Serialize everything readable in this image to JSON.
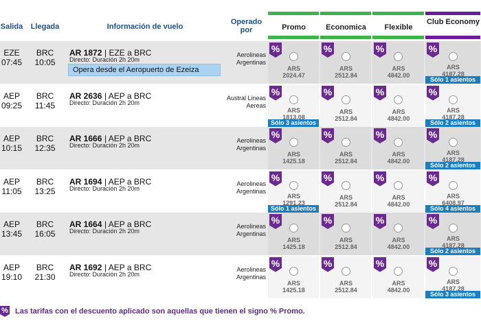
{
  "header": {
    "columns": [
      "Salida",
      "Llegada",
      "Información de vuelo",
      "Operado por",
      "Promo",
      "Economica",
      "Flexible",
      "Club Economy"
    ]
  },
  "promo_badge": "%",
  "flights": [
    {
      "origin": "EZE",
      "departure": "07:45",
      "destination": "BRC",
      "arrival": "10:05",
      "flight_number": "AR 1872",
      "route": "| EZE a BRC",
      "duration": "Directo: Duración 2h 20m",
      "note": "Opera desde el Aeropuerto de Ezeiza",
      "operator": "Aerolineas Argentinas",
      "fares": [
        {
          "currency": "ARS",
          "amount": "2024.47"
        },
        {
          "currency": "ARS",
          "amount": "2512.84"
        },
        {
          "currency": "ARS",
          "amount": "4842.00"
        },
        {
          "currency": "ARS",
          "amount": "4187.28",
          "seats": "Sólo 1 asientos"
        }
      ]
    },
    {
      "origin": "AEP",
      "departure": "09:25",
      "destination": "BRC",
      "arrival": "11:45",
      "flight_number": "AR 2636",
      "route": "| AEP a BRC",
      "duration": "Directo: Duración 2h 20m",
      "operator": "Austral Lineas Aereas",
      "fares": [
        {
          "currency": "ARS",
          "amount": "1813.08",
          "seats": "Sólo 3 asientos"
        },
        {
          "currency": "ARS",
          "amount": "2512.84"
        },
        {
          "currency": "ARS",
          "amount": "4842.00"
        },
        {
          "currency": "ARS",
          "amount": "4187.28",
          "seats": "Sólo 2 asientos"
        }
      ]
    },
    {
      "origin": "AEP",
      "departure": "10:15",
      "destination": "BRC",
      "arrival": "12:35",
      "flight_number": "AR 1666",
      "route": "| AEP a BRC",
      "duration": "Directo: Duración 2h 20m",
      "operator": "Aerolineas Argentinas",
      "fares": [
        {
          "currency": "ARS",
          "amount": "1425.18"
        },
        {
          "currency": "ARS",
          "amount": "2512.84"
        },
        {
          "currency": "ARS",
          "amount": "4842.00"
        },
        {
          "currency": "ARS",
          "amount": "4187.28",
          "seats": "Sólo 2 asientos"
        }
      ]
    },
    {
      "origin": "AEP",
      "departure": "11:05",
      "destination": "BRC",
      "arrival": "13:25",
      "flight_number": "AR 1694",
      "route": "| AEP a BRC",
      "duration": "Directo: Duración 2h 20m",
      "operator": "Aerolineas Argentinas",
      "fares": [
        {
          "currency": "ARS",
          "amount": "1291.23",
          "seats": "Sólo 1 asientos"
        },
        {
          "currency": "ARS",
          "amount": "2512.84"
        },
        {
          "currency": "ARS",
          "amount": "4842.00"
        },
        {
          "currency": "ARS",
          "amount": "6408.97",
          "seats": "Sólo 4 asientos"
        }
      ]
    },
    {
      "origin": "AEP",
      "departure": "13:45",
      "destination": "BRC",
      "arrival": "16:05",
      "flight_number": "AR 1664",
      "route": "| AEP a BRC",
      "duration": "Directo: Duración 2h 20m",
      "operator": "Aerolineas Argentinas",
      "fares": [
        {
          "currency": "ARS",
          "amount": "1425.18"
        },
        {
          "currency": "ARS",
          "amount": "2512.84"
        },
        {
          "currency": "ARS",
          "amount": "4842.00"
        },
        {
          "currency": "ARS",
          "amount": "4187.28",
          "seats": "Sólo 2 asientos"
        }
      ]
    },
    {
      "origin": "AEP",
      "departure": "19:10",
      "destination": "BRC",
      "arrival": "21:30",
      "flight_number": "AR 1692",
      "route": "| AEP a BRC",
      "duration": "Directo: Duración 2h 20m",
      "operator": "Aerolineas Argentinas",
      "fares": [
        {
          "currency": "ARS",
          "amount": "1425.18"
        },
        {
          "currency": "ARS",
          "amount": "2512.84"
        },
        {
          "currency": "ARS",
          "amount": "4842.00"
        },
        {
          "currency": "ARS",
          "amount": "4187.28",
          "seats": "Sólo 3 asientos"
        }
      ]
    }
  ],
  "footer": {
    "text": "Las tarifas con el descuento aplicado son aquellas que tienen el signo % Promo."
  }
}
